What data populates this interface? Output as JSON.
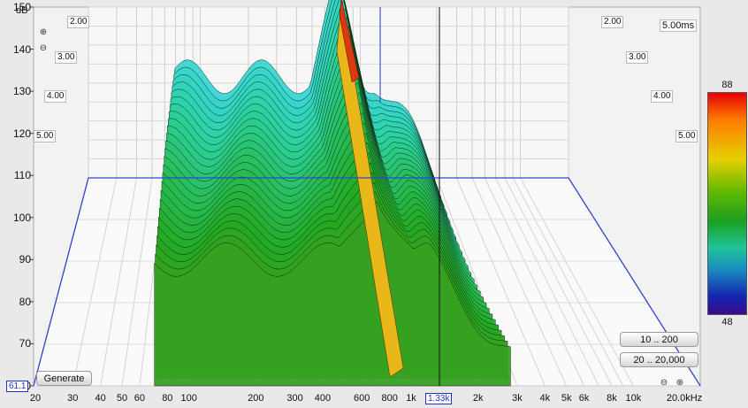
{
  "chart_data": {
    "type": "waterfall-3d",
    "y_unit": "dB",
    "y_ticks": [
      "150",
      "140",
      "130",
      "120",
      "110",
      "100",
      "90",
      "80",
      "70",
      "60"
    ],
    "x_ticks": [
      "20",
      "30",
      "40",
      "50",
      "60",
      "80",
      "100",
      "200",
      "300",
      "400",
      "600",
      "800",
      "1k",
      "2k",
      "3k",
      "4k",
      "5k",
      "6k",
      "8k",
      "10k",
      "20.0kHz"
    ],
    "time_labels_left": [
      "2.00",
      "3.00",
      "4.00",
      "5.00"
    ],
    "time_labels_right": [
      "2.00",
      "3.00",
      "4.00",
      "5.00"
    ],
    "time_max_label": "5.00ms",
    "colorbar": {
      "max": "88",
      "min": "48"
    },
    "peak": {
      "freq_hz": 700,
      "level_db": 129
    },
    "cursor": {
      "freq_label": "1.33k",
      "level_label": "61.1"
    }
  },
  "buttons": {
    "generate": "Generate",
    "range_low": "10 .. 200",
    "range_full": "20 .. 20,000"
  },
  "colors": {
    "frame": "#3344cc",
    "cursor": "#111111",
    "peak_line": "#2233cc"
  }
}
